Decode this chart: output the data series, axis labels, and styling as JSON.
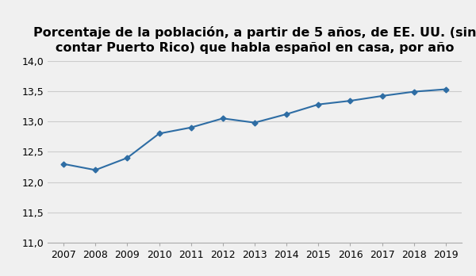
{
  "title_line1": "Porcentaje de la población, a partir de 5 años, de EE. UU. (sin",
  "title_line2": "contar Puerto Rico) que habla español en casa, por año",
  "years": [
    2007,
    2008,
    2009,
    2010,
    2011,
    2012,
    2013,
    2014,
    2015,
    2016,
    2017,
    2018,
    2019
  ],
  "values": [
    12.3,
    12.2,
    12.4,
    12.8,
    12.9,
    13.05,
    12.98,
    13.12,
    13.28,
    13.34,
    13.42,
    13.49,
    13.53
  ],
  "line_color": "#2e6da4",
  "marker": "D",
  "marker_size": 3.5,
  "ylim": [
    11.0,
    14.0
  ],
  "yticks": [
    11.0,
    11.5,
    12.0,
    12.5,
    13.0,
    13.5,
    14.0
  ],
  "background_color": "#f0f0f0",
  "grid_color": "#cccccc",
  "title_fontsize": 11.5,
  "tick_fontsize": 9
}
